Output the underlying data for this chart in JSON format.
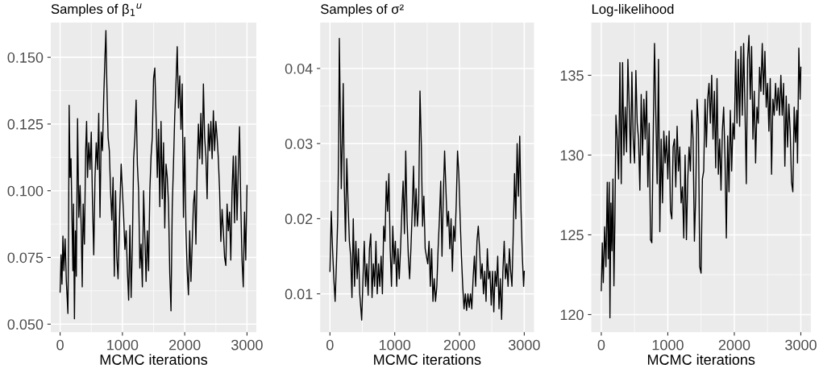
{
  "chart_data": [
    {
      "type": "line",
      "title": "Samples of β$_{1}$$^{u}$",
      "xlabel": "MCMC iterations",
      "grid": true,
      "color": "#000000",
      "xlim": [
        -150,
        3150
      ],
      "xticks": [
        0,
        1000,
        2000,
        3000
      ],
      "ylim": [
        0.047,
        0.163
      ],
      "yticks": [
        {
          "value": 0.05,
          "label": "0.050"
        },
        {
          "value": 0.075,
          "label": "0.075"
        },
        {
          "value": 0.1,
          "label": "0.100"
        },
        {
          "value": 0.125,
          "label": "0.125"
        },
        {
          "value": 0.15,
          "label": "0.150"
        }
      ],
      "x": [
        0,
        15,
        30,
        45,
        60,
        80,
        100,
        115,
        125,
        135,
        145,
        160,
        175,
        190,
        205,
        215,
        230,
        245,
        260,
        280,
        300,
        320,
        340,
        355,
        370,
        390,
        410,
        425,
        440,
        460,
        480,
        500,
        520,
        540,
        560,
        580,
        600,
        620,
        640,
        660,
        680,
        700,
        720,
        735,
        750,
        770,
        790,
        810,
        830,
        850,
        870,
        890,
        910,
        930,
        960,
        980,
        1000,
        1020,
        1040,
        1060,
        1080,
        1100,
        1120,
        1140,
        1160,
        1180,
        1200,
        1220,
        1240,
        1260,
        1280,
        1300,
        1320,
        1340,
        1360,
        1380,
        1400,
        1420,
        1440,
        1460,
        1480,
        1500,
        1520,
        1540,
        1560,
        1580,
        1600,
        1620,
        1640,
        1660,
        1680,
        1700,
        1720,
        1740,
        1760,
        1780,
        1800,
        1820,
        1840,
        1860,
        1880,
        1900,
        1920,
        1940,
        1960,
        1980,
        2000,
        2020,
        2040,
        2060,
        2080,
        2100,
        2120,
        2140,
        2160,
        2180,
        2200,
        2220,
        2240,
        2260,
        2280,
        2300,
        2320,
        2340,
        2360,
        2380,
        2400,
        2420,
        2440,
        2460,
        2480,
        2500,
        2520,
        2540,
        2560,
        2580,
        2600,
        2620,
        2640,
        2660,
        2680,
        2700,
        2720,
        2740,
        2760,
        2780,
        2800,
        2820,
        2840,
        2860,
        2880,
        2900,
        2920,
        2940,
        2960,
        2980,
        3000
      ],
      "values": [
        0.062,
        0.076,
        0.065,
        0.083,
        0.07,
        0.082,
        0.066,
        0.059,
        0.054,
        0.08,
        0.132,
        0.105,
        0.112,
        0.09,
        0.07,
        0.095,
        0.052,
        0.085,
        0.068,
        0.127,
        0.09,
        0.102,
        0.085,
        0.064,
        0.095,
        0.08,
        0.115,
        0.126,
        0.105,
        0.118,
        0.108,
        0.122,
        0.095,
        0.076,
        0.105,
        0.118,
        0.108,
        0.129,
        0.09,
        0.122,
        0.115,
        0.135,
        0.15,
        0.16,
        0.14,
        0.12,
        0.115,
        0.1,
        0.089,
        0.105,
        0.068,
        0.1,
        0.075,
        0.067,
        0.095,
        0.11,
        0.1,
        0.09,
        0.078,
        0.085,
        0.07,
        0.059,
        0.087,
        0.06,
        0.08,
        0.112,
        0.12,
        0.134,
        0.11,
        0.1,
        0.071,
        0.08,
        0.064,
        0.1,
        0.083,
        0.066,
        0.085,
        0.07,
        0.1,
        0.113,
        0.12,
        0.142,
        0.146,
        0.128,
        0.105,
        0.123,
        0.094,
        0.126,
        0.097,
        0.118,
        0.086,
        0.11,
        0.105,
        0.095,
        0.069,
        0.055,
        0.094,
        0.11,
        0.128,
        0.14,
        0.154,
        0.131,
        0.143,
        0.123,
        0.14,
        0.09,
        0.12,
        0.085,
        0.07,
        0.061,
        0.085,
        0.066,
        0.08,
        0.095,
        0.1,
        0.08,
        0.108,
        0.125,
        0.112,
        0.129,
        0.11,
        0.14,
        0.12,
        0.113,
        0.097,
        0.125,
        0.115,
        0.126,
        0.112,
        0.13,
        0.115,
        0.126,
        0.12,
        0.112,
        0.1,
        0.081,
        0.093,
        0.085,
        0.075,
        0.072,
        0.095,
        0.085,
        0.092,
        0.074,
        0.1,
        0.113,
        0.088,
        0.113,
        0.089,
        0.108,
        0.124,
        0.095,
        0.074,
        0.064,
        0.092,
        0.074,
        0.102
      ]
    },
    {
      "type": "line",
      "title": "Samples of σ²",
      "xlabel": "MCMC iterations",
      "grid": true,
      "color": "#000000",
      "xlim": [
        -150,
        3150
      ],
      "xticks": [
        0,
        1000,
        2000,
        3000
      ],
      "ylim": [
        0.0049,
        0.0461
      ],
      "yticks": [
        0.01,
        0.02,
        0.03,
        0.04
      ],
      "x": [
        0,
        20,
        40,
        60,
        80,
        100,
        120,
        135,
        145,
        160,
        175,
        190,
        205,
        220,
        240,
        260,
        280,
        300,
        320,
        340,
        360,
        380,
        400,
        420,
        440,
        460,
        490,
        510,
        530,
        550,
        570,
        590,
        610,
        630,
        650,
        670,
        690,
        710,
        730,
        750,
        770,
        790,
        810,
        830,
        850,
        870,
        890,
        910,
        930,
        950,
        970,
        990,
        1010,
        1030,
        1050,
        1070,
        1090,
        1110,
        1130,
        1150,
        1170,
        1190,
        1210,
        1230,
        1250,
        1270,
        1290,
        1310,
        1330,
        1350,
        1370,
        1390,
        1410,
        1430,
        1450,
        1470,
        1490,
        1510,
        1530,
        1550,
        1570,
        1590,
        1610,
        1630,
        1650,
        1670,
        1690,
        1710,
        1730,
        1750,
        1770,
        1790,
        1810,
        1830,
        1850,
        1870,
        1890,
        1910,
        1930,
        1950,
        1970,
        1990,
        2010,
        2030,
        2050,
        2070,
        2090,
        2110,
        2130,
        2150,
        2170,
        2190,
        2210,
        2230,
        2250,
        2270,
        2290,
        2310,
        2330,
        2350,
        2370,
        2390,
        2410,
        2430,
        2450,
        2470,
        2490,
        2510,
        2530,
        2550,
        2570,
        2590,
        2610,
        2630,
        2650,
        2670,
        2690,
        2710,
        2730,
        2750,
        2770,
        2790,
        2810,
        2830,
        2850,
        2870,
        2890,
        2910,
        2930,
        2950,
        2970,
        2990,
        3000
      ],
      "values": [
        0.013,
        0.021,
        0.016,
        0.012,
        0.009,
        0.014,
        0.02,
        0.03,
        0.044,
        0.034,
        0.024,
        0.03,
        0.038,
        0.025,
        0.017,
        0.028,
        0.022,
        0.017,
        0.015,
        0.0095,
        0.02,
        0.011,
        0.017,
        0.012,
        0.016,
        0.01,
        0.0065,
        0.012,
        0.017,
        0.011,
        0.014,
        0.0098,
        0.016,
        0.018,
        0.0095,
        0.014,
        0.011,
        0.017,
        0.01,
        0.014,
        0.011,
        0.015,
        0.01,
        0.019,
        0.017,
        0.025,
        0.021,
        0.026,
        0.016,
        0.011,
        0.019,
        0.014,
        0.017,
        0.011,
        0.016,
        0.012,
        0.016,
        0.021,
        0.025,
        0.018,
        0.029,
        0.02,
        0.015,
        0.012,
        0.016,
        0.021,
        0.027,
        0.019,
        0.024,
        0.019,
        0.022,
        0.037,
        0.03,
        0.019,
        0.023,
        0.016,
        0.015,
        0.014,
        0.017,
        0.011,
        0.016,
        0.009,
        0.012,
        0.009,
        0.011,
        0.016,
        0.02,
        0.025,
        0.015,
        0.023,
        0.029,
        0.024,
        0.019,
        0.021,
        0.016,
        0.02,
        0.013,
        0.019,
        0.017,
        0.022,
        0.029,
        0.026,
        0.02,
        0.015,
        0.011,
        0.008,
        0.01,
        0.0078,
        0.01,
        0.0082,
        0.01,
        0.008,
        0.012,
        0.015,
        0.011,
        0.017,
        0.019,
        0.016,
        0.012,
        0.014,
        0.01,
        0.013,
        0.009,
        0.016,
        0.012,
        0.013,
        0.0085,
        0.013,
        0.0076,
        0.013,
        0.011,
        0.015,
        0.008,
        0.012,
        0.0066,
        0.013,
        0.017,
        0.012,
        0.014,
        0.011,
        0.016,
        0.013,
        0.011,
        0.018,
        0.026,
        0.02,
        0.03,
        0.023,
        0.031,
        0.021,
        0.015,
        0.011,
        0.013
      ]
    },
    {
      "type": "line",
      "title": "Log-likelihood",
      "xlabel": "MCMC iterations",
      "grid": true,
      "color": "#000000",
      "xlim": [
        -150,
        3150
      ],
      "xticks": [
        0,
        1000,
        2000,
        3000
      ],
      "ylim": [
        118.9,
        138.3
      ],
      "yticks": [
        120,
        125,
        130,
        135
      ],
      "x": [
        0,
        15,
        30,
        50,
        70,
        90,
        105,
        120,
        130,
        145,
        160,
        175,
        190,
        205,
        220,
        240,
        260,
        280,
        300,
        320,
        340,
        360,
        380,
        400,
        420,
        440,
        460,
        480,
        500,
        520,
        540,
        560,
        580,
        600,
        620,
        640,
        660,
        680,
        700,
        720,
        740,
        760,
        780,
        800,
        820,
        840,
        860,
        880,
        900,
        920,
        940,
        960,
        980,
        1000,
        1020,
        1040,
        1060,
        1080,
        1100,
        1120,
        1140,
        1160,
        1180,
        1200,
        1220,
        1240,
        1260,
        1280,
        1300,
        1320,
        1340,
        1360,
        1380,
        1400,
        1420,
        1440,
        1460,
        1480,
        1500,
        1520,
        1540,
        1560,
        1580,
        1600,
        1620,
        1640,
        1660,
        1680,
        1700,
        1720,
        1740,
        1760,
        1780,
        1800,
        1820,
        1840,
        1860,
        1880,
        1900,
        1920,
        1940,
        1960,
        1980,
        2000,
        2020,
        2040,
        2060,
        2080,
        2100,
        2120,
        2140,
        2160,
        2180,
        2200,
        2220,
        2240,
        2260,
        2280,
        2300,
        2320,
        2340,
        2360,
        2380,
        2400,
        2420,
        2440,
        2460,
        2480,
        2500,
        2520,
        2540,
        2560,
        2580,
        2600,
        2620,
        2640,
        2660,
        2680,
        2700,
        2720,
        2740,
        2760,
        2780,
        2800,
        2820,
        2840,
        2860,
        2880,
        2900,
        2920,
        2940,
        2950,
        2970,
        2990,
        3000
      ],
      "values": [
        121.5,
        124.5,
        122,
        125.5,
        123,
        128.3,
        123.5,
        128.3,
        119.8,
        127,
        124,
        128.5,
        121.8,
        126,
        132.5,
        131,
        128.5,
        135.8,
        128.2,
        135.8,
        130,
        133,
        130.2,
        136,
        133,
        129.5,
        135.2,
        131,
        129.5,
        135.3,
        132,
        131,
        127.8,
        133.8,
        130,
        133.5,
        131,
        134,
        128,
        132,
        124.7,
        124.5,
        131,
        137,
        132.5,
        128.2,
        136,
        125.2,
        131,
        127,
        131.5,
        129.5,
        131.2,
        128.5,
        131.5,
        126.5,
        126,
        130.5,
        131,
        128,
        131.8,
        129,
        130.5,
        127,
        128,
        124.8,
        130,
        124.7,
        128.5,
        130.5,
        129,
        132.8,
        131,
        124.6,
        127.5,
        133.5,
        132,
        123,
        122.6,
        128.5,
        129,
        133.5,
        130.5,
        133.5,
        134.5,
        132,
        135,
        131,
        134,
        129.2,
        134.8,
        128.8,
        131,
        127.8,
        131.5,
        133,
        129.8,
        124.8,
        131.2,
        127.7,
        132.8,
        129,
        132,
        131,
        136.5,
        132,
        136,
        131.8,
        136.8,
        132.5,
        137,
        133,
        128.2,
        136,
        137.5,
        133.5,
        136.8,
        131,
        134,
        129.5,
        133,
        132,
        135.5,
        134,
        137,
        133.8,
        136.5,
        133,
        134.5,
        131.5,
        134.8,
        128.8,
        133.5,
        132.5,
        134.5,
        132.8,
        134.2,
        132.5,
        135,
        132.5,
        134.5,
        129.3,
        133.7,
        130.5,
        133.2,
        131.5,
        128.3,
        127.7,
        133,
        130.8,
        132.8,
        129.5,
        136.7,
        133.5,
        135.5
      ]
    }
  ]
}
